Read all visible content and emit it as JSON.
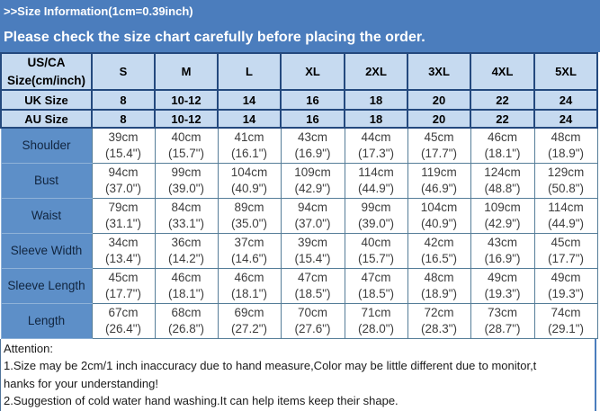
{
  "title_bar": {
    "text": ">>Size Information(1cm=0.39inch)"
  },
  "subtitle_bar": {
    "text": "Please check the size chart carefully before placing the order."
  },
  "size_table": {
    "corner_header": {
      "line1": "US/CA",
      "line2": "Size(cm/inch)"
    },
    "size_columns": [
      "S",
      "M",
      "L",
      "XL",
      "2XL",
      "3XL",
      "4XL",
      "5XL"
    ],
    "region_size_rows": [
      {
        "label": "UK Size",
        "values": [
          "8",
          "10-12",
          "14",
          "16",
          "18",
          "20",
          "22",
          "24"
        ]
      },
      {
        "label": "AU Size",
        "values": [
          "8",
          "10-12",
          "14",
          "16",
          "18",
          "20",
          "22",
          "24"
        ]
      }
    ],
    "measurement_rows": [
      {
        "label": "Shoulder",
        "cells": [
          {
            "cm": "39cm",
            "inch": "(15.4\")"
          },
          {
            "cm": "40cm",
            "inch": "(15.7\")"
          },
          {
            "cm": "41cm",
            "inch": "(16.1\")"
          },
          {
            "cm": "43cm",
            "inch": "(16.9\")"
          },
          {
            "cm": "44cm",
            "inch": "(17.3\")"
          },
          {
            "cm": "45cm",
            "inch": "(17.7\")"
          },
          {
            "cm": "46cm",
            "inch": "(18.1\")"
          },
          {
            "cm": "48cm",
            "inch": "(18.9\")"
          }
        ]
      },
      {
        "label": "Bust",
        "cells": [
          {
            "cm": "94cm",
            "inch": "(37.0\")"
          },
          {
            "cm": "99cm",
            "inch": "(39.0\")"
          },
          {
            "cm": "104cm",
            "inch": "(40.9\")"
          },
          {
            "cm": "109cm",
            "inch": "(42.9\")"
          },
          {
            "cm": "114cm",
            "inch": "(44.9\")"
          },
          {
            "cm": "119cm",
            "inch": "(46.9\")"
          },
          {
            "cm": "124cm",
            "inch": "(48.8\")"
          },
          {
            "cm": "129cm",
            "inch": "(50.8\")"
          }
        ]
      },
      {
        "label": "Waist",
        "cells": [
          {
            "cm": "79cm",
            "inch": "(31.1\")"
          },
          {
            "cm": "84cm",
            "inch": "(33.1\")"
          },
          {
            "cm": "89cm",
            "inch": "(35.0\")"
          },
          {
            "cm": "94cm",
            "inch": "(37.0\")"
          },
          {
            "cm": "99cm",
            "inch": "(39.0\")"
          },
          {
            "cm": "104cm",
            "inch": "(40.9\")"
          },
          {
            "cm": "109cm",
            "inch": "(42.9\")"
          },
          {
            "cm": "114cm",
            "inch": "(44.9\")"
          }
        ]
      },
      {
        "label": "Sleeve Width",
        "cells": [
          {
            "cm": "34cm",
            "inch": "(13.4\")"
          },
          {
            "cm": "36cm",
            "inch": "(14.2\")"
          },
          {
            "cm": "37cm",
            "inch": "(14.6\")"
          },
          {
            "cm": "39cm",
            "inch": "(15.4\")"
          },
          {
            "cm": "40cm",
            "inch": "(15.7\")"
          },
          {
            "cm": "42cm",
            "inch": "(16.5\")"
          },
          {
            "cm": "43cm",
            "inch": "(16.9\")"
          },
          {
            "cm": "45cm",
            "inch": "(17.7\")"
          }
        ]
      },
      {
        "label": "Sleeve Length",
        "cells": [
          {
            "cm": "45cm",
            "inch": "(17.7\")"
          },
          {
            "cm": "46cm",
            "inch": "(18.1\")"
          },
          {
            "cm": "46cm",
            "inch": "(18.1\")"
          },
          {
            "cm": "47cm",
            "inch": "(18.5\")"
          },
          {
            "cm": "47cm",
            "inch": "(18.5\")"
          },
          {
            "cm": "48cm",
            "inch": "(18.9\")"
          },
          {
            "cm": "49cm",
            "inch": "(19.3\")"
          },
          {
            "cm": "49cm",
            "inch": "(19.3\")"
          }
        ]
      },
      {
        "label": "Length",
        "cells": [
          {
            "cm": "67cm",
            "inch": "(26.4\")"
          },
          {
            "cm": "68cm",
            "inch": "(26.8\")"
          },
          {
            "cm": "69cm",
            "inch": "(27.2\")"
          },
          {
            "cm": "70cm",
            "inch": "(27.6\")"
          },
          {
            "cm": "71cm",
            "inch": "(28.0\")"
          },
          {
            "cm": "72cm",
            "inch": "(28.3\")"
          },
          {
            "cm": "73cm",
            "inch": "(28.7\")"
          },
          {
            "cm": "74cm",
            "inch": "(29.1\")"
          }
        ]
      }
    ]
  },
  "attention": {
    "heading": "Attention:",
    "lines": [
      "1.Size may be 2cm/1 inch inaccuracy due to hand measure,Color may be little different due to monitor,t",
      "hanks for your understanding!",
      "2.Suggestion of cold water hand washing.It can help items keep their shape."
    ]
  },
  "colors": {
    "bar_blue": "#4b7dbd",
    "label_cell_blue": "#5d8fc8",
    "header_light_blue": "#c6daf0",
    "dark_border": "#24497e",
    "cell_border": "#557d98",
    "bar_text": "#ffffff",
    "header_text": "#000000",
    "cell_text": "#3d3d3d",
    "label_text": "#11253f"
  }
}
